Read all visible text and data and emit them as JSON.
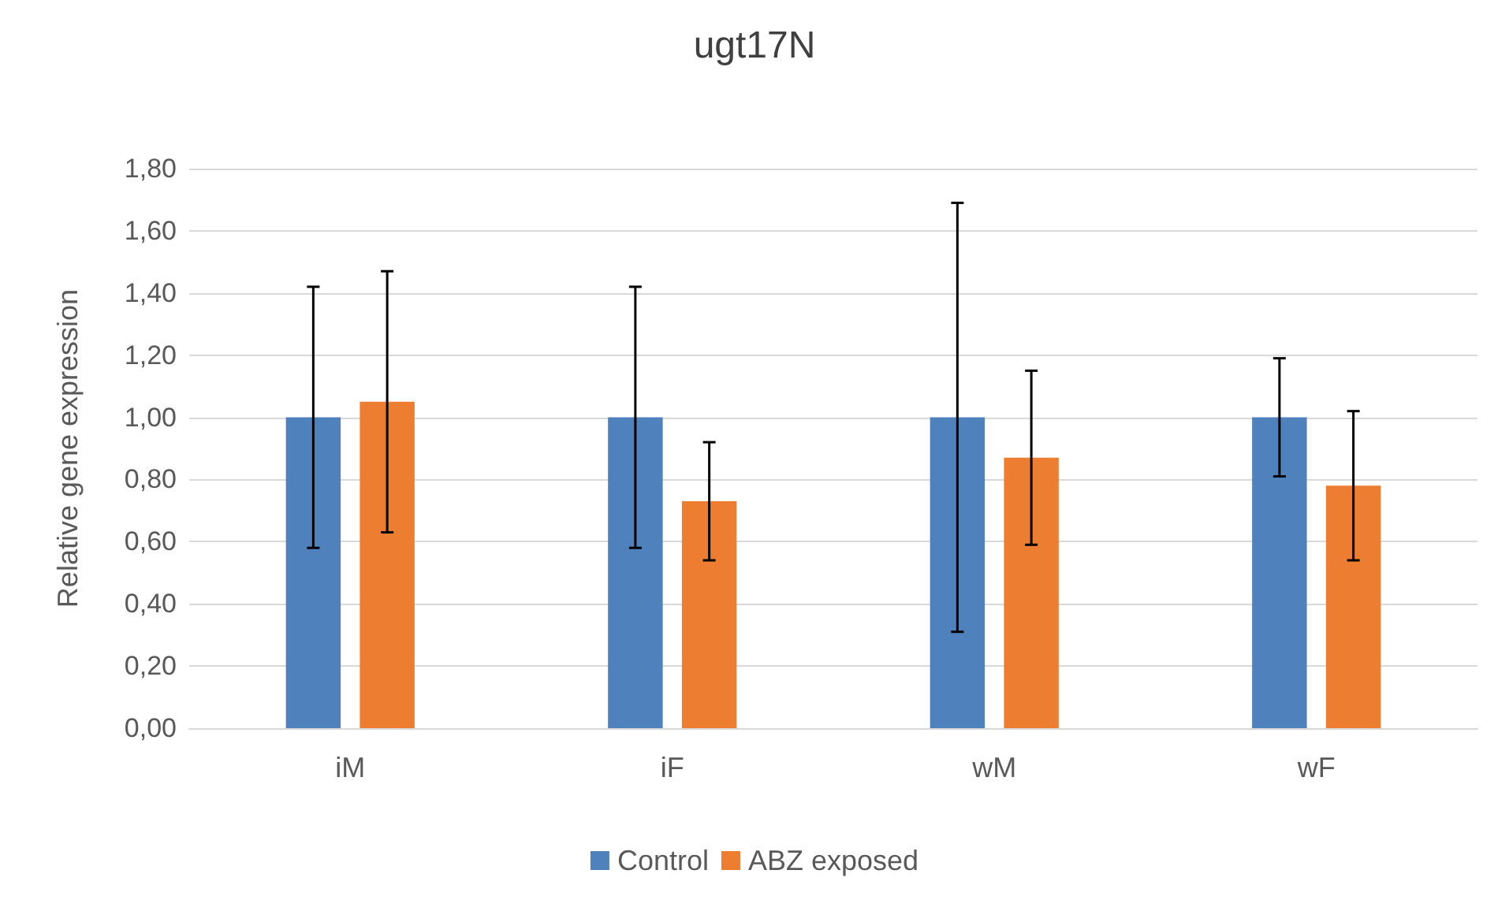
{
  "chart_data": {
    "type": "bar",
    "title": "ugt17N",
    "ylabel": "Relative gene expression",
    "categories": [
      "iM",
      "iF",
      "wM",
      "wF"
    ],
    "series": [
      {
        "name": "Control",
        "color": "#4f81bd",
        "values": [
          1.0,
          1.0,
          1.0,
          1.0
        ],
        "errors": [
          0.42,
          0.42,
          0.69,
          0.19
        ]
      },
      {
        "name": "ABZ exposed",
        "color": "#ed7d31",
        "values": [
          1.05,
          0.73,
          0.87,
          0.78
        ],
        "errors": [
          0.42,
          0.19,
          0.28,
          0.24
        ]
      }
    ],
    "ylim": [
      0,
      1.8
    ],
    "yticks": [
      {
        "value": 0,
        "label": "0,00"
      },
      {
        "value": 0.2,
        "label": "0,20"
      },
      {
        "value": 0.4,
        "label": "0,40"
      },
      {
        "value": 0.6,
        "label": "0,60"
      },
      {
        "value": 0.8,
        "label": "0,80"
      },
      {
        "value": 1.0,
        "label": "1,00"
      },
      {
        "value": 1.2,
        "label": "1,20"
      },
      {
        "value": 1.4,
        "label": "1,40"
      },
      {
        "value": 1.6,
        "label": "1,60"
      },
      {
        "value": 1.8,
        "label": "1,80"
      }
    ],
    "grid": "y",
    "legend": "bottom"
  }
}
